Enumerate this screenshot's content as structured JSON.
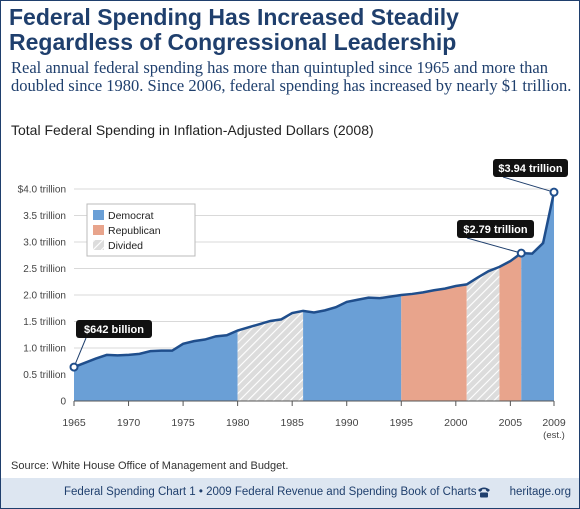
{
  "header": {
    "title": "Federal Spending Has Increased Steadily Regardless of Congressional Leadership",
    "lead": "Real annual federal spending has more than quintupled since 1965 and more than doubled since 1980. Since 2006, federal spending has increased by nearly $1 trillion."
  },
  "chart_data": {
    "type": "area",
    "title": "Total Federal Spending in Inflation-Adjusted Dollars (2008)",
    "xlabel": "",
    "ylabel": "",
    "xlim": [
      1965,
      2009
    ],
    "ylim": [
      0,
      4.0
    ],
    "x_ticks": [
      "1965",
      "1970",
      "1975",
      "1980",
      "1985",
      "1990",
      "1995",
      "2000",
      "2005",
      "2009"
    ],
    "x_tick_sub": "(est.)",
    "y_ticks": [
      "0",
      "0.5 trillion",
      "1.0 trillion",
      "1.5 trillion",
      "2.0 trillion",
      "2.5 trillion",
      "3.0 trillion",
      "3.5 trillion",
      "$4.0 trillion"
    ],
    "grid": true,
    "years": [
      1965,
      1966,
      1967,
      1968,
      1969,
      1970,
      1971,
      1972,
      1973,
      1974,
      1975,
      1976,
      1977,
      1978,
      1979,
      1980,
      1981,
      1982,
      1983,
      1984,
      1985,
      1986,
      1987,
      1988,
      1989,
      1990,
      1991,
      1992,
      1993,
      1994,
      1995,
      1996,
      1997,
      1998,
      1999,
      2000,
      2001,
      2002,
      2003,
      2004,
      2005,
      2006,
      2007,
      2008,
      2009
    ],
    "values": [
      0.64,
      0.72,
      0.8,
      0.87,
      0.86,
      0.87,
      0.89,
      0.94,
      0.95,
      0.95,
      1.08,
      1.13,
      1.16,
      1.22,
      1.24,
      1.33,
      1.39,
      1.45,
      1.51,
      1.54,
      1.66,
      1.7,
      1.67,
      1.71,
      1.77,
      1.87,
      1.91,
      1.95,
      1.94,
      1.97,
      2.0,
      2.02,
      2.05,
      2.09,
      2.12,
      2.17,
      2.2,
      2.33,
      2.45,
      2.53,
      2.64,
      2.79,
      2.78,
      2.98,
      3.94
    ],
    "periods": [
      {
        "start": 1965,
        "end": 1980,
        "control": "Democrat"
      },
      {
        "start": 1980,
        "end": 1986,
        "control": "Divided"
      },
      {
        "start": 1986,
        "end": 1995,
        "control": "Democrat"
      },
      {
        "start": 1995,
        "end": 2001,
        "control": "Republican"
      },
      {
        "start": 2001,
        "end": 2004,
        "control": "Divided"
      },
      {
        "start": 2004,
        "end": 2006,
        "control": "Republican"
      },
      {
        "start": 2006,
        "end": 2009,
        "control": "Democrat"
      }
    ],
    "legend": {
      "placement": "top-left",
      "items": [
        {
          "label": "Democrat",
          "color": "#6a9fd6"
        },
        {
          "label": "Republican",
          "color": "#e8a48c"
        },
        {
          "label": "Divided",
          "color": "#d8d8d8"
        }
      ]
    },
    "annotations": [
      {
        "x": 1965,
        "y": 0.64,
        "label": "$642 billion"
      },
      {
        "x": 2006,
        "y": 2.79,
        "label": "$2.79 trillion"
      },
      {
        "x": 2009,
        "y": 3.94,
        "label": "$3.94 trillion"
      }
    ],
    "line_color": "#1f4e8c"
  },
  "source": "Source: White House Office of Management and Budget.",
  "footer": {
    "chart_label": "Federal Spending Chart 1 • 2009 Federal Revenue and Spending Book of Charts",
    "site": "heritage.org"
  }
}
